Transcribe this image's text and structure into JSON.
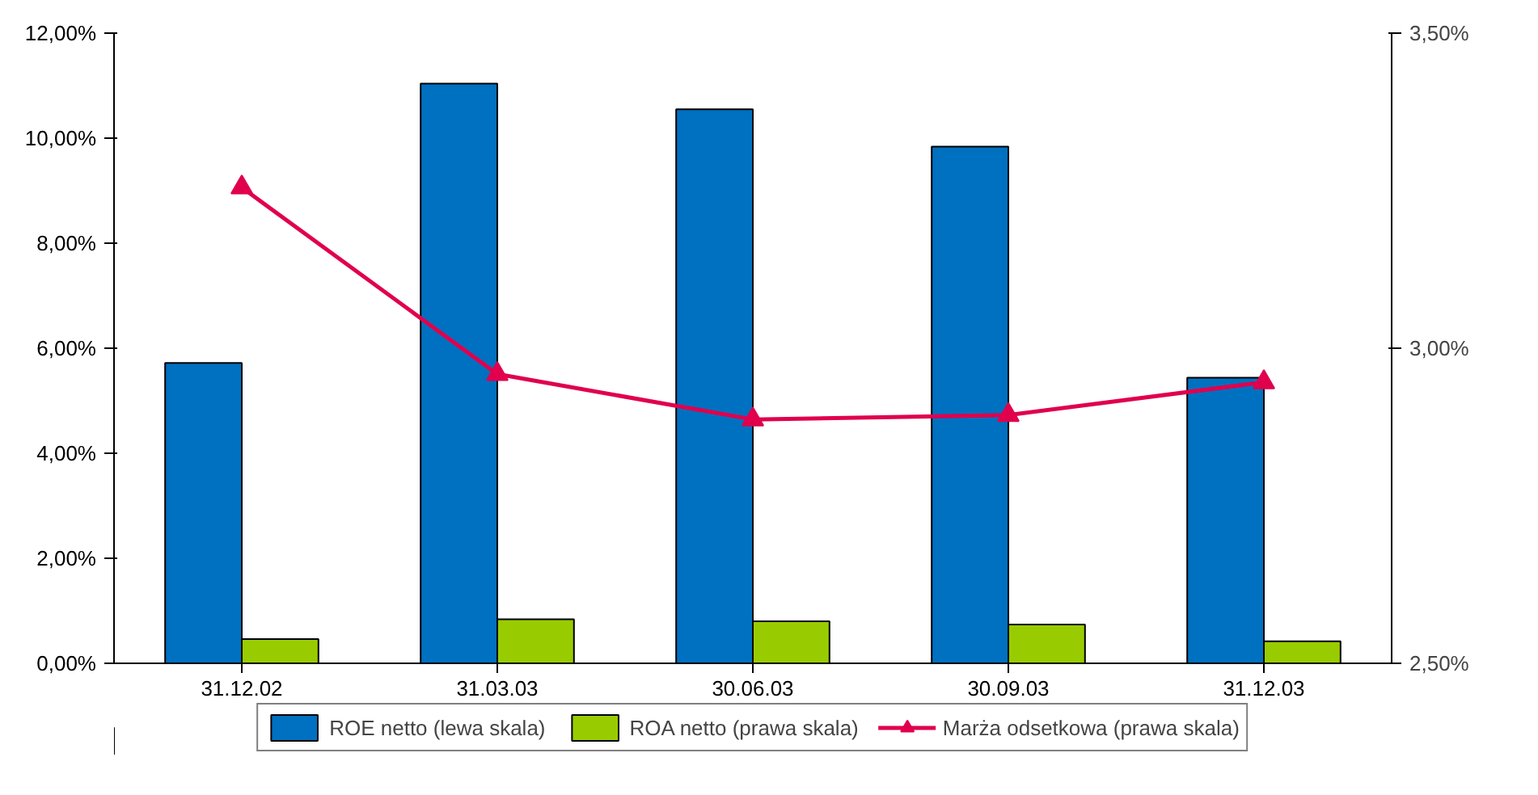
{
  "chart_data": {
    "type": "bar",
    "categories": [
      "31.12.02",
      "31.03.03",
      "30.06.03",
      "30.09.03",
      "31.12.03"
    ],
    "series": [
      {
        "name": "ROE netto (lewa skala)",
        "color": "#0070c0",
        "values": [
          5.72,
          11.04,
          10.55,
          9.84,
          5.44
        ]
      },
      {
        "name": "ROA netto (prawa skala)",
        "color": "#99cc00",
        "values": [
          0.46,
          0.84,
          0.8,
          0.74,
          0.42
        ]
      },
      {
        "name": "Marża odsetkowa (prawa skala)",
        "type": "line",
        "axis": "y2",
        "color": "#e0004d",
        "marker": "triangle",
        "values": [
          3.255,
          2.959,
          2.887,
          2.894,
          2.946
        ]
      }
    ],
    "ylim": [
      0,
      12
    ],
    "yticks": [
      {
        "value": 0,
        "label": "0,00%"
      },
      {
        "value": 2,
        "label": "2,00%"
      },
      {
        "value": 4,
        "label": "4,00%"
      },
      {
        "value": 6,
        "label": "6,00%"
      },
      {
        "value": 8,
        "label": "8,00%"
      },
      {
        "value": 10,
        "label": "10,00%"
      },
      {
        "value": 12,
        "label": "12,00%"
      }
    ],
    "y2lim": [
      2.5,
      3.5
    ],
    "y2ticks": [
      {
        "value": 2.5,
        "label": "2,50%"
      },
      {
        "value": 3.0,
        "label": "3,00%"
      },
      {
        "value": 3.5,
        "label": "3,50%"
      }
    ],
    "legend": "bottom",
    "grid": false
  }
}
